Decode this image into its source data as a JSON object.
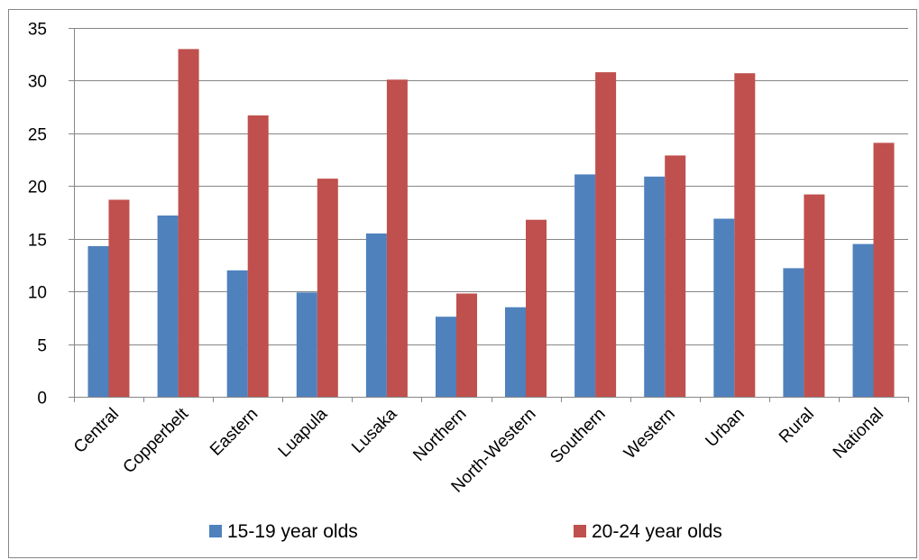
{
  "chart_data": {
    "type": "bar",
    "title": "",
    "xlabel": "",
    "ylabel": "",
    "ylim": [
      0,
      35
    ],
    "yticks": [
      0,
      5,
      10,
      15,
      20,
      25,
      30,
      35
    ],
    "grid": true,
    "legend_position": "bottom",
    "categories": [
      "Central",
      "Copperbelt",
      "Eastern",
      "Luapula",
      "Lusaka",
      "Northern",
      "North-Western",
      "Southern",
      "Western",
      "Urban",
      "Rural",
      "National"
    ],
    "series": [
      {
        "name": "15-19 year olds",
        "color": "#4F81BD",
        "values": [
          14.3,
          17.2,
          12.0,
          9.9,
          15.5,
          7.6,
          8.5,
          21.1,
          20.9,
          16.9,
          12.2,
          14.5
        ]
      },
      {
        "name": "20-24 year olds",
        "color": "#C0504D",
        "values": [
          18.7,
          33.0,
          26.7,
          20.7,
          30.1,
          9.8,
          16.8,
          30.8,
          22.9,
          30.7,
          19.2,
          24.1
        ]
      }
    ]
  }
}
